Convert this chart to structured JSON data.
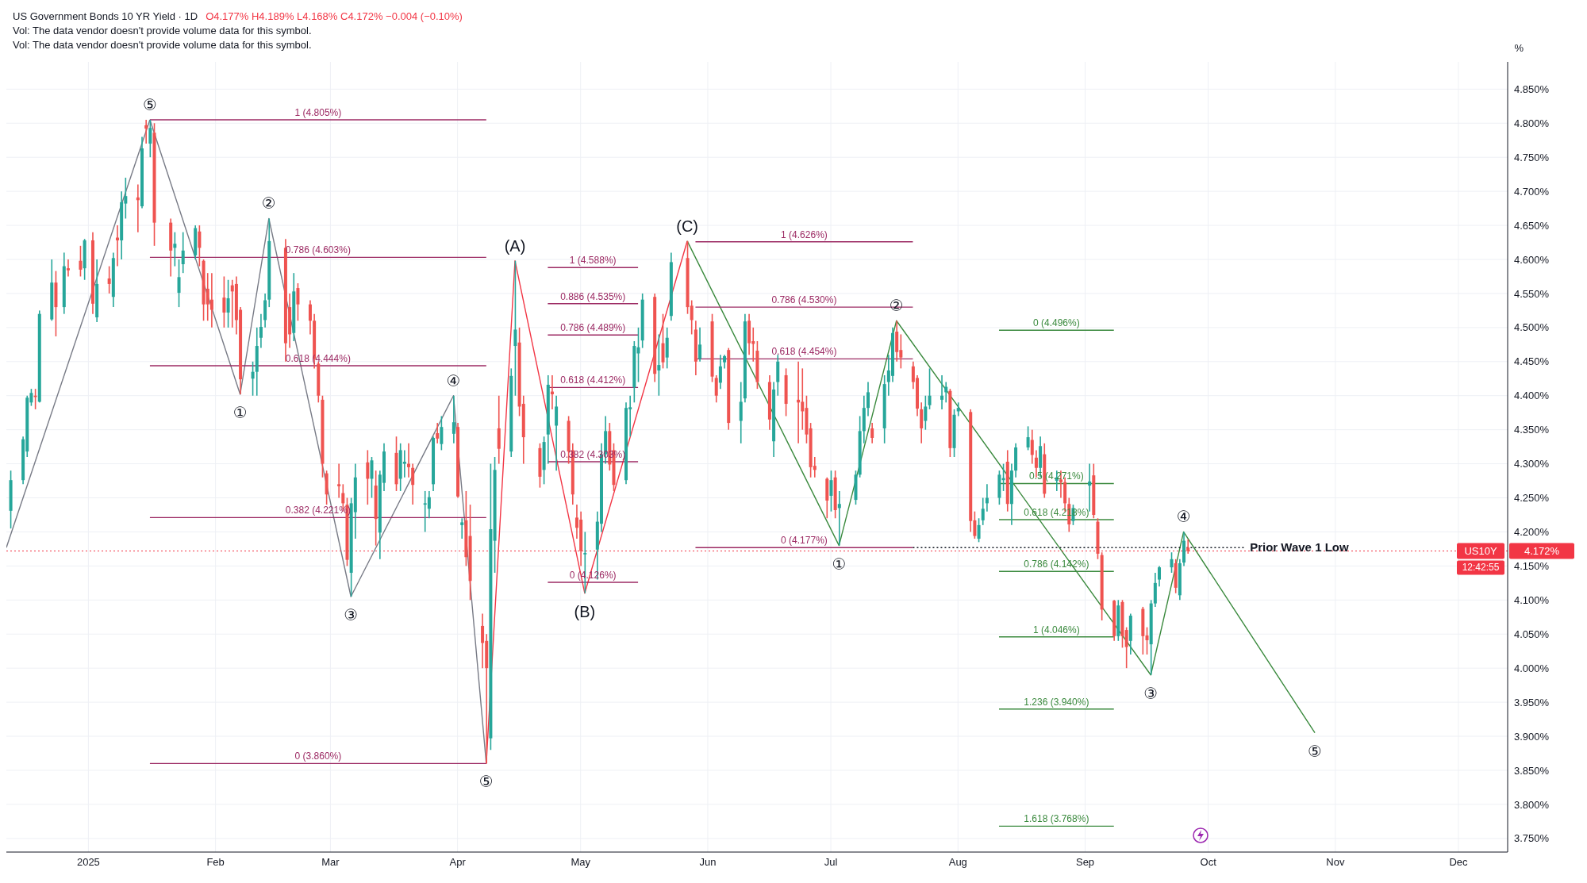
{
  "chart_data": {
    "type": "candlestick",
    "title": "US Government Bonds 10 YR Yield · 1D",
    "subtitle": "O4.177% H4.189% L4.168% C4.172% −0.004 (−0.10%)",
    "ylabel": "%",
    "x": [
      "2024-12-13",
      "2024-12-16",
      "2024-12-17",
      "2024-12-18",
      "2024-12-19",
      "2024-12-20",
      "2024-12-23",
      "2024-12-24",
      "2024-12-26",
      "2024-12-27",
      "2024-12-30",
      "2024-12-31",
      "2025-01-02",
      "2025-01-03",
      "2025-01-06",
      "2025-01-07",
      "2025-01-08",
      "2025-01-09",
      "2025-01-10",
      "2025-01-13",
      "2025-01-14",
      "2025-01-15",
      "2025-01-16",
      "2025-01-17",
      "2025-01-21",
      "2025-01-22",
      "2025-01-23",
      "2025-01-24",
      "2025-01-27",
      "2025-01-28",
      "2025-01-29",
      "2025-01-30",
      "2025-01-31",
      "2025-02-03",
      "2025-02-04",
      "2025-02-05",
      "2025-02-06",
      "2025-02-07",
      "2025-02-10",
      "2025-02-11",
      "2025-02-12",
      "2025-02-13",
      "2025-02-14",
      "2025-02-18",
      "2025-02-19",
      "2025-02-20",
      "2025-02-21",
      "2025-02-24",
      "2025-02-25",
      "2025-02-26",
      "2025-02-27",
      "2025-02-28",
      "2025-03-03",
      "2025-03-04",
      "2025-03-05",
      "2025-03-06",
      "2025-03-07",
      "2025-03-10",
      "2025-03-11",
      "2025-03-12",
      "2025-03-13",
      "2025-03-14",
      "2025-03-17",
      "2025-03-18",
      "2025-03-19",
      "2025-03-20",
      "2025-03-21",
      "2025-03-24",
      "2025-03-25",
      "2025-03-26",
      "2025-03-27",
      "2025-03-28",
      "2025-03-31",
      "2025-04-01",
      "2025-04-02",
      "2025-04-03",
      "2025-04-04",
      "2025-04-07",
      "2025-04-08",
      "2025-04-09",
      "2025-04-10",
      "2025-04-11",
      "2025-04-14",
      "2025-04-15",
      "2025-04-16",
      "2025-04-17",
      "2025-04-21",
      "2025-04-22",
      "2025-04-23",
      "2025-04-24",
      "2025-04-25",
      "2025-04-28",
      "2025-04-29",
      "2025-04-30",
      "2025-05-01",
      "2025-05-02",
      "2025-05-05",
      "2025-05-06",
      "2025-05-07",
      "2025-05-08",
      "2025-05-09",
      "2025-05-12",
      "2025-05-13",
      "2025-05-14",
      "2025-05-15",
      "2025-05-16",
      "2025-05-19",
      "2025-05-20",
      "2025-05-21",
      "2025-05-22",
      "2025-05-23",
      "2025-05-27",
      "2025-05-28",
      "2025-05-29",
      "2025-05-30",
      "2025-06-02",
      "2025-06-03",
      "2025-06-04",
      "2025-06-05",
      "2025-06-06",
      "2025-06-09",
      "2025-06-10",
      "2025-06-11",
      "2025-06-12",
      "2025-06-13",
      "2025-06-16",
      "2025-06-17",
      "2025-06-18",
      "2025-06-20",
      "2025-06-23",
      "2025-06-24",
      "2025-06-25",
      "2025-06-26",
      "2025-06-27",
      "2025-06-30",
      "2025-07-01",
      "2025-07-02",
      "2025-07-03",
      "2025-07-07",
      "2025-07-08",
      "2025-07-09",
      "2025-07-10",
      "2025-07-11",
      "2025-07-14",
      "2025-07-15",
      "2025-07-16",
      "2025-07-17",
      "2025-07-18",
      "2025-07-21",
      "2025-07-22",
      "2025-07-23",
      "2025-07-24",
      "2025-07-25",
      "2025-07-28",
      "2025-07-29",
      "2025-07-30",
      "2025-07-31",
      "2025-08-01",
      "2025-08-04",
      "2025-08-05",
      "2025-08-06",
      "2025-08-07",
      "2025-08-08",
      "2025-08-11",
      "2025-08-12",
      "2025-08-13",
      "2025-08-14",
      "2025-08-15",
      "2025-08-18",
      "2025-08-19",
      "2025-08-20",
      "2025-08-21",
      "2025-08-22",
      "2025-08-25",
      "2025-08-26",
      "2025-08-27",
      "2025-08-28",
      "2025-08-29",
      "2025-09-02",
      "2025-09-03",
      "2025-09-04",
      "2025-09-05",
      "2025-09-08",
      "2025-09-09",
      "2025-09-10",
      "2025-09-11",
      "2025-09-12",
      "2025-09-15",
      "2025-09-16",
      "2025-09-17",
      "2025-09-18",
      "2025-09-19",
      "2025-09-22",
      "2025-09-23",
      "2025-09-24",
      "2025-09-25",
      "2025-09-26"
    ],
    "ohlc": [
      [
        4.231,
        4.29,
        4.205,
        4.276
      ],
      [
        4.276,
        4.34,
        4.27,
        4.336
      ],
      [
        4.318,
        4.4,
        4.31,
        4.397
      ],
      [
        4.39,
        4.41,
        4.385,
        4.404
      ],
      [
        4.4,
        4.41,
        4.38,
        4.398
      ],
      [
        4.391,
        4.525,
        4.39,
        4.52
      ],
      [
        4.512,
        4.6,
        4.51,
        4.566
      ],
      [
        4.566,
        4.583,
        4.487,
        4.53
      ],
      [
        4.53,
        4.61,
        4.52,
        4.59
      ],
      [
        4.587,
        4.6,
        4.575,
        4.584
      ],
      [
        4.598,
        4.62,
        4.575,
        4.585
      ],
      [
        4.587,
        4.63,
        4.57,
        4.628
      ],
      [
        4.628,
        4.64,
        4.52,
        4.535
      ],
      [
        4.515,
        4.6,
        4.508,
        4.564
      ],
      [
        4.572,
        4.59,
        4.55,
        4.564
      ],
      [
        4.545,
        4.61,
        4.53,
        4.602
      ],
      [
        4.632,
        4.65,
        4.59,
        4.628
      ],
      [
        4.628,
        4.7,
        4.6,
        4.684
      ],
      [
        4.682,
        4.72,
        4.66,
        4.693
      ],
      [
        4.691,
        4.71,
        4.64,
        4.687
      ],
      [
        4.678,
        4.78,
        4.675,
        4.763
      ],
      [
        4.797,
        4.805,
        4.77,
        4.792
      ],
      [
        4.77,
        4.805,
        4.75,
        4.793
      ],
      [
        4.786,
        4.8,
        4.62,
        4.654
      ],
      [
        4.654,
        4.66,
        4.575,
        4.613
      ],
      [
        4.617,
        4.64,
        4.59,
        4.623
      ],
      [
        4.551,
        4.6,
        4.53,
        4.574
      ],
      [
        4.593,
        4.64,
        4.58,
        4.613
      ],
      [
        4.606,
        4.65,
        4.6,
        4.646
      ],
      [
        4.641,
        4.65,
        4.59,
        4.617
      ],
      [
        4.598,
        4.6,
        4.51,
        4.534
      ],
      [
        4.557,
        4.58,
        4.51,
        4.534
      ],
      [
        4.541,
        4.58,
        4.5,
        4.526
      ],
      [
        4.544,
        4.575,
        4.5,
        4.522
      ],
      [
        4.522,
        4.57,
        4.5,
        4.543
      ],
      [
        4.562,
        4.57,
        4.5,
        4.553
      ],
      [
        4.564,
        4.575,
        4.49,
        4.511
      ],
      [
        4.526,
        4.53,
        4.402,
        4.424
      ],
      [
        4.425,
        4.45,
        4.4,
        4.435
      ],
      [
        4.435,
        4.5,
        4.4,
        4.473
      ],
      [
        4.485,
        4.52,
        4.47,
        4.501
      ],
      [
        4.511,
        4.55,
        4.5,
        4.54
      ],
      [
        4.541,
        4.66,
        4.53,
        4.627
      ],
      [
        4.617,
        4.63,
        4.45,
        4.477
      ],
      [
        4.53,
        4.55,
        4.47,
        4.49
      ],
      [
        4.492,
        4.58,
        4.48,
        4.553
      ],
      [
        4.558,
        4.565,
        4.51,
        4.534
      ],
      [
        4.534,
        4.54,
        4.49,
        4.51
      ],
      [
        4.51,
        4.52,
        4.44,
        4.454
      ],
      [
        4.447,
        4.45,
        4.39,
        4.4
      ],
      [
        4.394,
        4.4,
        4.28,
        4.3
      ],
      [
        4.286,
        4.29,
        4.24,
        4.255
      ],
      [
        4.27,
        4.3,
        4.25,
        4.267
      ],
      [
        4.257,
        4.27,
        4.23,
        4.242
      ],
      [
        4.24,
        4.25,
        4.15,
        4.159
      ],
      [
        4.14,
        4.25,
        4.105,
        4.242
      ],
      [
        4.229,
        4.3,
        4.19,
        4.28
      ],
      [
        4.302,
        4.32,
        4.24,
        4.278
      ],
      [
        4.278,
        4.31,
        4.25,
        4.305
      ],
      [
        4.268,
        4.29,
        4.18,
        4.219
      ],
      [
        4.199,
        4.29,
        4.16,
        4.284
      ],
      [
        4.272,
        4.33,
        4.26,
        4.318
      ],
      [
        4.316,
        4.34,
        4.26,
        4.27
      ],
      [
        4.278,
        4.33,
        4.26,
        4.32
      ],
      [
        4.3,
        4.32,
        4.28,
        4.303
      ],
      [
        4.3,
        4.33,
        4.28,
        4.295
      ],
      [
        4.294,
        4.3,
        4.24,
        4.269
      ],
      [
        4.24,
        4.26,
        4.2,
        4.242
      ],
      [
        4.234,
        4.26,
        4.22,
        4.251
      ],
      [
        4.27,
        4.34,
        4.26,
        4.338
      ],
      [
        4.345,
        4.36,
        4.33,
        4.337
      ],
      [
        4.329,
        4.37,
        4.32,
        4.354
      ],
      [
        4.344,
        4.4,
        4.33,
        4.361
      ],
      [
        4.354,
        4.36,
        4.25,
        4.252
      ],
      [
        4.21,
        4.22,
        4.19,
        4.214
      ],
      [
        4.217,
        4.26,
        4.15,
        4.163
      ],
      [
        4.194,
        4.24,
        4.1,
        4.128
      ],
      [
        4.062,
        4.08,
        4.0,
        4.037
      ],
      [
        4.04,
        4.05,
        3.86,
        4.0
      ],
      [
        3.897,
        4.3,
        3.88,
        4.204
      ],
      [
        4.187,
        4.31,
        4.14,
        4.291
      ],
      [
        4.352,
        4.4,
        4.3,
        4.322
      ],
      [
        4.318,
        4.44,
        4.31,
        4.429
      ],
      [
        4.473,
        4.598,
        4.4,
        4.497
      ],
      [
        4.478,
        4.5,
        4.37,
        4.384
      ],
      [
        4.388,
        4.4,
        4.3,
        4.339
      ],
      [
        4.323,
        4.33,
        4.265,
        4.281
      ],
      [
        4.291,
        4.34,
        4.27,
        4.332
      ],
      [
        4.343,
        4.43,
        4.3,
        4.416
      ],
      [
        4.406,
        4.43,
        4.38,
        4.402
      ],
      [
        4.356,
        4.4,
        4.29,
        4.384
      ],
      [
        4.363,
        4.37,
        4.3,
        4.318
      ],
      [
        4.32,
        4.33,
        4.24,
        4.255
      ],
      [
        4.221,
        4.24,
        4.19,
        4.206
      ],
      [
        4.218,
        4.23,
        4.15,
        4.172
      ],
      [
        4.167,
        4.2,
        4.11,
        4.169
      ],
      [
        4.174,
        4.23,
        4.13,
        4.215
      ],
      [
        4.212,
        4.33,
        4.2,
        4.314
      ],
      [
        4.314,
        4.37,
        4.3,
        4.348
      ],
      [
        4.348,
        4.36,
        4.29,
        4.299
      ],
      [
        4.32,
        4.33,
        4.26,
        4.269
      ],
      [
        4.276,
        4.39,
        4.27,
        4.382
      ],
      [
        4.38,
        4.4,
        4.34,
        4.383
      ],
      [
        4.412,
        4.48,
        4.39,
        4.473
      ],
      [
        4.462,
        4.5,
        4.42,
        4.471
      ],
      [
        4.481,
        4.55,
        4.47,
        4.541
      ],
      [
        4.545,
        4.55,
        4.42,
        4.432
      ],
      [
        4.437,
        4.49,
        4.4,
        4.445
      ],
      [
        4.477,
        4.52,
        4.44,
        4.449
      ],
      [
        4.456,
        4.5,
        4.44,
        4.485
      ],
      [
        4.517,
        4.61,
        4.51,
        4.596
      ],
      [
        4.602,
        4.627,
        4.52,
        4.53
      ],
      [
        4.532,
        4.54,
        4.49,
        4.511
      ],
      [
        4.497,
        4.51,
        4.43,
        4.45
      ],
      [
        4.454,
        4.5,
        4.45,
        4.475
      ],
      [
        4.509,
        4.52,
        4.42,
        4.428
      ],
      [
        4.426,
        4.43,
        4.39,
        4.4
      ],
      [
        4.419,
        4.46,
        4.41,
        4.443
      ],
      [
        4.449,
        4.46,
        4.44,
        4.458
      ],
      [
        4.467,
        4.47,
        4.35,
        4.36
      ],
      [
        4.363,
        4.42,
        4.33,
        4.391
      ],
      [
        4.396,
        4.52,
        4.39,
        4.509
      ],
      [
        4.51,
        4.52,
        4.46,
        4.477
      ],
      [
        4.48,
        4.5,
        4.45,
        4.476
      ],
      [
        4.466,
        4.48,
        4.41,
        4.42
      ],
      [
        4.42,
        4.43,
        4.35,
        4.365
      ],
      [
        4.333,
        4.42,
        4.31,
        4.409
      ],
      [
        4.42,
        4.46,
        4.4,
        4.45
      ],
      [
        4.43,
        4.44,
        4.37,
        4.388
      ],
      [
        4.394,
        4.45,
        4.33,
        4.39
      ],
      [
        4.391,
        4.44,
        4.35,
        4.377
      ],
      [
        4.382,
        4.4,
        4.33,
        4.343
      ],
      [
        4.352,
        4.36,
        4.28,
        4.295
      ],
      [
        4.297,
        4.31,
        4.28,
        4.291
      ],
      [
        4.278,
        4.28,
        4.22,
        4.246
      ],
      [
        4.253,
        4.29,
        4.23,
        4.276
      ],
      [
        4.28,
        4.29,
        4.22,
        4.232
      ],
      [
        4.235,
        4.26,
        4.18,
        4.241
      ],
      [
        4.247,
        4.29,
        4.24,
        4.284
      ],
      [
        4.284,
        4.37,
        4.28,
        4.348
      ],
      [
        4.348,
        4.4,
        4.33,
        4.382
      ],
      [
        4.382,
        4.42,
        4.37,
        4.405
      ],
      [
        4.352,
        4.36,
        4.33,
        4.338
      ],
      [
        4.352,
        4.43,
        4.33,
        4.417
      ],
      [
        4.42,
        4.46,
        4.4,
        4.437
      ],
      [
        4.429,
        4.5,
        4.42,
        4.492
      ],
      [
        4.494,
        4.51,
        4.45,
        4.464
      ],
      [
        4.467,
        4.49,
        4.44,
        4.456
      ],
      [
        4.443,
        4.45,
        4.41,
        4.42
      ],
      [
        4.426,
        4.43,
        4.37,
        4.381
      ],
      [
        4.38,
        4.39,
        4.33,
        4.352
      ],
      [
        4.363,
        4.4,
        4.35,
        4.384
      ],
      [
        4.386,
        4.44,
        4.38,
        4.4
      ],
      [
        4.394,
        4.43,
        4.38,
        4.4
      ],
      [
        4.405,
        4.42,
        4.39,
        4.413
      ],
      [
        4.407,
        4.41,
        4.31,
        4.323
      ],
      [
        4.323,
        4.38,
        4.31,
        4.372
      ],
      [
        4.377,
        4.39,
        4.37,
        4.382
      ],
      [
        4.376,
        4.38,
        4.2,
        4.216
      ],
      [
        4.217,
        4.23,
        4.19,
        4.194
      ],
      [
        4.19,
        4.22,
        4.185,
        4.21
      ],
      [
        4.217,
        4.25,
        4.21,
        4.234
      ],
      [
        4.242,
        4.27,
        4.23,
        4.25
      ],
      [
        4.25,
        4.29,
        4.24,
        4.284
      ],
      [
        4.276,
        4.3,
        4.26,
        4.279
      ],
      [
        4.303,
        4.32,
        4.23,
        4.241
      ],
      [
        4.241,
        4.3,
        4.21,
        4.29
      ],
      [
        4.29,
        4.33,
        4.28,
        4.324
      ],
      [
        4.324,
        4.355,
        4.32,
        4.339
      ],
      [
        4.335,
        4.35,
        4.3,
        4.313
      ],
      [
        4.309,
        4.32,
        4.28,
        4.294
      ],
      [
        4.294,
        4.34,
        4.28,
        4.326
      ],
      [
        4.314,
        4.33,
        4.25,
        4.256
      ],
      [
        4.275,
        4.29,
        4.26,
        4.28
      ],
      [
        4.277,
        4.29,
        4.25,
        4.273
      ],
      [
        4.273,
        4.28,
        4.23,
        4.242
      ],
      [
        4.241,
        4.25,
        4.2,
        4.211
      ],
      [
        4.216,
        4.24,
        4.21,
        4.235
      ],
      [
        4.268,
        4.3,
        4.23,
        4.274
      ],
      [
        4.283,
        4.3,
        4.22,
        4.225
      ],
      [
        4.215,
        4.22,
        4.16,
        4.168
      ],
      [
        4.166,
        4.17,
        4.07,
        4.086
      ],
      [
        4.099,
        4.1,
        4.04,
        4.047
      ],
      [
        4.047,
        4.1,
        4.04,
        4.092
      ],
      [
        4.097,
        4.1,
        4.03,
        4.047
      ],
      [
        4.056,
        4.06,
        4.0,
        4.031
      ],
      [
        4.04,
        4.08,
        4.02,
        4.077
      ],
      [
        4.087,
        4.09,
        4.02,
        4.047
      ],
      [
        4.048,
        4.06,
        4.02,
        4.041
      ],
      [
        4.035,
        4.1,
        3.99,
        4.095
      ],
      [
        4.095,
        4.14,
        4.09,
        4.125
      ],
      [
        4.13,
        4.15,
        4.12,
        4.148
      ],
      [
        4.148,
        4.17,
        4.14,
        4.16
      ],
      [
        4.154,
        4.16,
        4.11,
        4.118
      ],
      [
        4.107,
        4.16,
        4.1,
        4.154
      ],
      [
        4.155,
        4.2,
        4.15,
        4.187
      ],
      [
        4.177,
        4.189,
        4.168,
        4.172
      ]
    ],
    "series": [
      {
        "type": "line",
        "color": "#787b86",
        "x": [
          "2024-12-12",
          "2025-01-16"
        ],
        "values": [
          4.177,
          4.805
        ]
      },
      {
        "type": "line",
        "color": "#787b86",
        "x": [
          "2025-01-16",
          "2025-02-07",
          "2025-02-14",
          "2025-03-06",
          "2025-03-31",
          "2025-04-08"
        ],
        "values": [
          4.805,
          4.402,
          4.66,
          4.105,
          4.4,
          3.86
        ]
      },
      {
        "type": "line",
        "color": "#f23645",
        "x": [
          "2025-04-08",
          "2025-04-15",
          "2025-05-02",
          "2025-05-27"
        ],
        "values": [
          3.86,
          4.598,
          4.11,
          4.627
        ]
      },
      {
        "type": "line",
        "color": "#3b8a3e",
        "x": [
          "2025-05-27",
          "2025-07-03",
          "2025-07-17",
          "2025-09-17",
          "2025-09-25",
          "2025-10-27"
        ],
        "values": [
          4.627,
          4.18,
          4.51,
          3.99,
          4.2,
          3.905
        ]
      },
      {
        "type": "line",
        "name": "1 (4.805%)",
        "color": "#9c2a63",
        "x": [
          "2025-01-16",
          "2025-04-08"
        ],
        "values": [
          4.805,
          4.805
        ]
      },
      {
        "type": "line",
        "name": "0.786 (4.603%)",
        "color": "#9c2a63",
        "x": [
          "2025-01-16",
          "2025-04-08"
        ],
        "values": [
          4.603,
          4.603
        ]
      },
      {
        "type": "line",
        "name": "0.618 (4.444%)",
        "color": "#9c2a63",
        "x": [
          "2025-01-16",
          "2025-04-08"
        ],
        "values": [
          4.444,
          4.444
        ]
      },
      {
        "type": "line",
        "name": "0.382 (4.221%)",
        "color": "#9c2a63",
        "x": [
          "2025-01-16",
          "2025-04-08"
        ],
        "values": [
          4.221,
          4.221
        ]
      },
      {
        "type": "line",
        "name": "0 (3.860%)",
        "color": "#9c2a63",
        "x": [
          "2025-01-16",
          "2025-04-08"
        ],
        "values": [
          3.86,
          3.86
        ]
      },
      {
        "type": "line",
        "name": "1 (4.588%)",
        "color": "#9c2a63",
        "x": [
          "2025-04-23",
          "2025-05-15"
        ],
        "values": [
          4.588,
          4.588
        ]
      },
      {
        "type": "line",
        "name": "0.886 (4.535%)",
        "color": "#9c2a63",
        "x": [
          "2025-04-23",
          "2025-05-15"
        ],
        "values": [
          4.535,
          4.535
        ]
      },
      {
        "type": "line",
        "name": "0.786 (4.489%)",
        "color": "#9c2a63",
        "x": [
          "2025-04-23",
          "2025-05-15"
        ],
        "values": [
          4.489,
          4.489
        ]
      },
      {
        "type": "line",
        "name": "0.618 (4.412%)",
        "color": "#9c2a63",
        "x": [
          "2025-04-23",
          "2025-05-15"
        ],
        "values": [
          4.412,
          4.412
        ]
      },
      {
        "type": "line",
        "name": "0.382 (4.303%)",
        "color": "#9c2a63",
        "x": [
          "2025-04-23",
          "2025-05-15"
        ],
        "values": [
          4.303,
          4.303
        ]
      },
      {
        "type": "line",
        "name": "0 (4.126%)",
        "color": "#9c2a63",
        "x": [
          "2025-04-23",
          "2025-05-15"
        ],
        "values": [
          4.126,
          4.126
        ]
      },
      {
        "type": "line",
        "name": "1 (4.626%)",
        "color": "#9c2a63",
        "x": [
          "2025-05-29",
          "2025-07-21"
        ],
        "values": [
          4.626,
          4.626
        ]
      },
      {
        "type": "line",
        "name": "0.786 (4.530%)",
        "color": "#9c2a63",
        "x": [
          "2025-05-29",
          "2025-07-21"
        ],
        "values": [
          4.53,
          4.53
        ]
      },
      {
        "type": "line",
        "name": "0.618 (4.454%)",
        "color": "#9c2a63",
        "x": [
          "2025-05-29",
          "2025-07-21"
        ],
        "values": [
          4.454,
          4.454
        ]
      },
      {
        "type": "line",
        "name": "0 (4.177%)",
        "color": "#9c2a63",
        "x": [
          "2025-05-29",
          "2025-07-21"
        ],
        "values": [
          4.177,
          4.177
        ]
      },
      {
        "type": "line",
        "name": "Prior Wave 1 Low",
        "color": "#131722",
        "line_style": "dotted",
        "x": [
          "2025-07-21",
          "2025-10-10"
        ],
        "values": [
          4.177,
          4.177
        ]
      },
      {
        "type": "line",
        "name": "0 (4.496%)",
        "color": "#3b8a3e",
        "x": [
          "2025-08-11",
          "2025-09-08"
        ],
        "values": [
          4.496,
          4.496
        ]
      },
      {
        "type": "line",
        "name": "0.5 (4.271%)",
        "color": "#3b8a3e",
        "x": [
          "2025-08-11",
          "2025-09-08"
        ],
        "values": [
          4.271,
          4.271
        ]
      },
      {
        "type": "line",
        "name": "0.618 (4.218%)",
        "color": "#3b8a3e",
        "x": [
          "2025-08-11",
          "2025-09-08"
        ],
        "values": [
          4.218,
          4.218
        ]
      },
      {
        "type": "line",
        "name": "0.786 (4.142%)",
        "color": "#3b8a3e",
        "x": [
          "2025-08-11",
          "2025-09-08"
        ],
        "values": [
          4.142,
          4.142
        ]
      },
      {
        "type": "line",
        "name": "1 (4.046%)",
        "color": "#3b8a3e",
        "x": [
          "2025-08-11",
          "2025-09-08"
        ],
        "values": [
          4.046,
          4.046
        ]
      },
      {
        "type": "line",
        "name": "1.236 (3.940%)",
        "color": "#3b8a3e",
        "x": [
          "2025-08-11",
          "2025-09-08"
        ],
        "values": [
          3.94,
          3.94
        ]
      },
      {
        "type": "line",
        "name": "1.618 (3.768%)",
        "color": "#3b8a3e",
        "x": [
          "2025-08-11",
          "2025-09-08"
        ],
        "values": [
          3.768,
          3.768
        ]
      }
    ],
    "ref_lines": [
      {
        "axis": "y",
        "value": 4.172,
        "label": "US10Y",
        "color": "#f23645",
        "line_style": "dotted"
      }
    ],
    "annotations": [
      "Vol: The data vendor doesn't provide volume data for this symbol.",
      "Vol: The data vendor doesn't provide volume data for this symbol.",
      "4.172%",
      "12:42:55",
      {
        "text": "⑤",
        "x": "2025-01-16",
        "y": 4.805
      },
      {
        "text": "①",
        "x": "2025-02-07",
        "y": 4.402
      },
      {
        "text": "②",
        "x": "2025-02-14",
        "y": 4.66
      },
      {
        "text": "③",
        "x": "2025-03-06",
        "y": 4.105
      },
      {
        "text": "④",
        "x": "2025-03-31",
        "y": 4.4
      },
      {
        "text": "⑤",
        "x": "2025-04-08",
        "y": 3.86
      },
      {
        "text": "(A)",
        "x": "2025-04-15",
        "y": 4.598
      },
      {
        "text": "(B)",
        "x": "2025-05-02",
        "y": 4.11
      },
      {
        "text": "(C)",
        "x": "2025-05-27",
        "y": 4.627
      },
      {
        "text": "①",
        "x": "2025-07-03",
        "y": 4.18
      },
      {
        "text": "②",
        "x": "2025-07-17",
        "y": 4.51
      },
      {
        "text": "③",
        "x": "2025-09-17",
        "y": 3.99
      },
      {
        "text": "④",
        "x": "2025-09-25",
        "y": 4.2
      },
      {
        "text": "⑤",
        "x": "2025-10-27",
        "y": 3.905
      }
    ],
    "xlim": [
      "2024-12-12",
      "2025-12-13"
    ],
    "xticks": [
      {
        "value": "2025-01-01",
        "label": "2025"
      },
      {
        "value": "2025-02-01",
        "label": "Feb"
      },
      {
        "value": "2025-03-01",
        "label": "Mar"
      },
      {
        "value": "2025-04-01",
        "label": "Apr"
      },
      {
        "value": "2025-05-01",
        "label": "May"
      },
      {
        "value": "2025-06-01",
        "label": "Jun"
      },
      {
        "value": "2025-07-01",
        "label": "Jul"
      },
      {
        "value": "2025-08-01",
        "label": "Aug"
      },
      {
        "value": "2025-09-01",
        "label": "Sep"
      },
      {
        "value": "2025-10-01",
        "label": "Oct"
      },
      {
        "value": "2025-11-01",
        "label": "Nov"
      },
      {
        "value": "2025-12-01",
        "label": "Dec"
      }
    ],
    "ylim": [
      3.73,
      4.89
    ],
    "yticks": [
      {
        "value": 3.75,
        "label": "3.750%"
      },
      {
        "value": 3.8,
        "label": "3.800%"
      },
      {
        "value": 3.85,
        "label": "3.850%"
      },
      {
        "value": 3.9,
        "label": "3.900%"
      },
      {
        "value": 3.95,
        "label": "3.950%"
      },
      {
        "value": 4.0,
        "label": "4.000%"
      },
      {
        "value": 4.05,
        "label": "4.050%"
      },
      {
        "value": 4.1,
        "label": "4.100%"
      },
      {
        "value": 4.15,
        "label": "4.150%"
      },
      {
        "value": 4.2,
        "label": "4.200%"
      },
      {
        "value": 4.25,
        "label": "4.250%"
      },
      {
        "value": 4.3,
        "label": "4.300%"
      },
      {
        "value": 4.35,
        "label": "4.350%"
      },
      {
        "value": 4.4,
        "label": "4.400%"
      },
      {
        "value": 4.45,
        "label": "4.450%"
      },
      {
        "value": 4.5,
        "label": "4.500%"
      },
      {
        "value": 4.55,
        "label": "4.550%"
      },
      {
        "value": 4.6,
        "label": "4.600%"
      },
      {
        "value": 4.65,
        "label": "4.650%"
      },
      {
        "value": 4.7,
        "label": "4.700%"
      },
      {
        "value": 4.75,
        "label": "4.750%"
      },
      {
        "value": 4.8,
        "label": "4.800%"
      },
      {
        "value": 4.85,
        "label": "4.850%"
      }
    ],
    "grid": true
  }
}
